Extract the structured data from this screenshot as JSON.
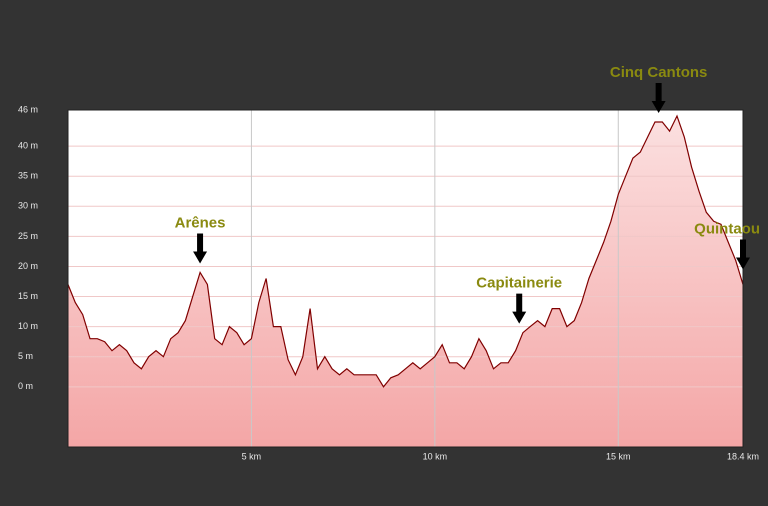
{
  "chart_data": {
    "type": "area",
    "x": [
      0,
      0.2,
      0.4,
      0.6,
      0.8,
      1.0,
      1.2,
      1.4,
      1.6,
      1.8,
      2.0,
      2.2,
      2.4,
      2.6,
      2.8,
      3.0,
      3.2,
      3.4,
      3.6,
      3.8,
      4.0,
      4.2,
      4.4,
      4.6,
      4.8,
      5.0,
      5.2,
      5.4,
      5.6,
      5.8,
      6.0,
      6.2,
      6.4,
      6.6,
      6.8,
      7.0,
      7.2,
      7.4,
      7.6,
      7.8,
      8.0,
      8.2,
      8.4,
      8.6,
      8.8,
      9.0,
      9.2,
      9.4,
      9.6,
      9.8,
      10.0,
      10.2,
      10.4,
      10.6,
      10.8,
      11.0,
      11.2,
      11.4,
      11.6,
      11.8,
      12.0,
      12.2,
      12.4,
      12.6,
      12.8,
      13.0,
      13.2,
      13.4,
      13.6,
      13.8,
      14.0,
      14.2,
      14.4,
      14.6,
      14.8,
      15.0,
      15.2,
      15.4,
      15.6,
      15.8,
      16.0,
      16.2,
      16.4,
      16.6,
      16.8,
      17.0,
      17.2,
      17.4,
      17.6,
      17.8,
      18.0,
      18.2,
      18.4
    ],
    "values": [
      17,
      14,
      12,
      8,
      8,
      7.5,
      6,
      7,
      6,
      4,
      3,
      5,
      6,
      5,
      8,
      9,
      11,
      15,
      19,
      17,
      8,
      7,
      10,
      9,
      7,
      8,
      14,
      18,
      10,
      10,
      4.5,
      2,
      5,
      13,
      3,
      5,
      3,
      2,
      3,
      2,
      2,
      2,
      2,
      0,
      1.5,
      2,
      3,
      4,
      3,
      4,
      5,
      7,
      4,
      4,
      3,
      5,
      8,
      6,
      3,
      4,
      4,
      6,
      9,
      10,
      11,
      10,
      13,
      13,
      10,
      11,
      14,
      18,
      21,
      24,
      27.5,
      32,
      35,
      38,
      39,
      41.5,
      44,
      44,
      42.5,
      45,
      41.5,
      36.5,
      32.5,
      29,
      27.5,
      27,
      24,
      21,
      17
    ],
    "color": "#800000",
    "fill_top": "#fbe0e0",
    "fill_bottom": "#f4a6a6",
    "xlim": [
      0,
      18.4
    ],
    "ylim": [
      -10,
      46
    ],
    "xticks": [
      {
        "value": 5,
        "label": "5 km"
      },
      {
        "value": 10,
        "label": "10 km"
      },
      {
        "value": 15,
        "label": "15 km"
      },
      {
        "value": 18.4,
        "label": "18.4 km"
      }
    ],
    "yticks": [
      {
        "value": 0,
        "label": "0 m"
      },
      {
        "value": 5,
        "label": "5 m"
      },
      {
        "value": 10,
        "label": "10 m"
      },
      {
        "value": 15,
        "label": "15 m"
      },
      {
        "value": 20,
        "label": "20 m"
      },
      {
        "value": 25,
        "label": "25 m"
      },
      {
        "value": 30,
        "label": "30 m"
      },
      {
        "value": 35,
        "label": "35 m"
      },
      {
        "value": 40,
        "label": "40 m"
      },
      {
        "value": 46,
        "label": "46 m"
      }
    ],
    "grid": true,
    "annotations": [
      {
        "text": "Arênes",
        "x": 3.6,
        "y": 20
      },
      {
        "text": "Capitainerie",
        "x": 12.3,
        "y": 10
      },
      {
        "text": "Cinq Cantons",
        "x": 16.1,
        "y": 45
      },
      {
        "text": "Quintaou",
        "x": 18.4,
        "y": 19
      }
    ]
  }
}
